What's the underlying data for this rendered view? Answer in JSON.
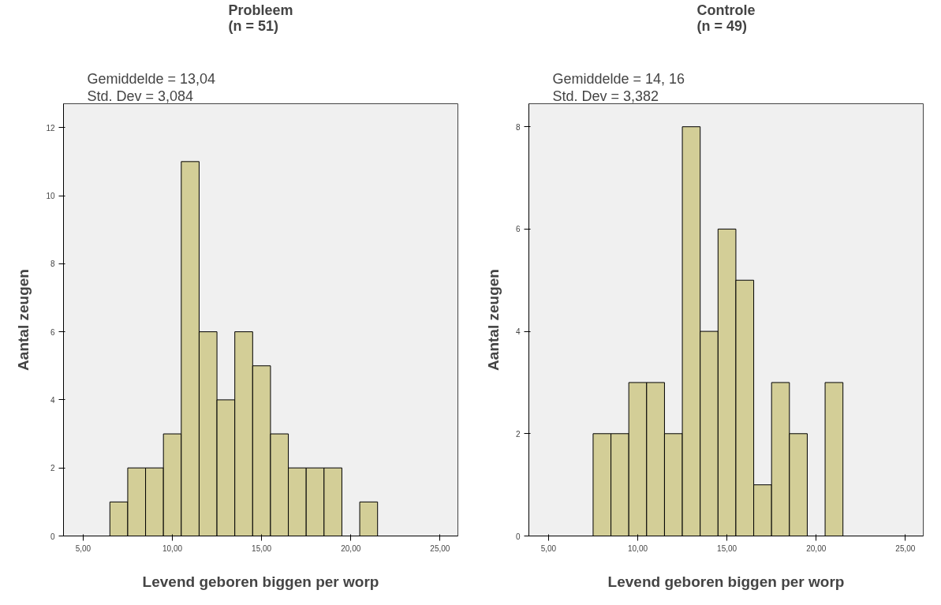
{
  "chart_data": [
    {
      "type": "histogram",
      "title": "Probleem\n(n = 51)",
      "annotations": [
        "Gemiddelde = 13,04",
        "Std. Dev = 3,084"
      ],
      "xlabel": "Levend geboren biggen per worp",
      "ylabel": "Aantal zeugen",
      "bins": [
        6.5,
        7.5,
        8.5,
        9.5,
        10.5,
        11.5,
        12.5,
        13.5,
        14.5,
        15.5,
        16.5,
        17.5,
        18.5,
        19.5,
        20.5,
        21.5
      ],
      "values": [
        1,
        2,
        2,
        3,
        11,
        6,
        4,
        6,
        5,
        3,
        2,
        2,
        2,
        0,
        1
      ],
      "color": "#d3ce97",
      "xlim": [
        3.9,
        26.0
      ],
      "xticks": [
        {
          "value": 5,
          "label": "5,00"
        },
        {
          "value": 10,
          "label": "10,00"
        },
        {
          "value": 15,
          "label": "15,00"
        },
        {
          "value": 20,
          "label": "20,00"
        },
        {
          "value": 25,
          "label": "25,00"
        }
      ],
      "ylim": [
        0,
        12.7
      ],
      "yticks": [
        0,
        2,
        4,
        6,
        8,
        10,
        12
      ],
      "grid": false
    },
    {
      "type": "histogram",
      "title": "Controle\n(n = 49)",
      "annotations": [
        "Gemiddelde = 14, 16",
        "Std. Dev = 3,382"
      ],
      "xlabel": "Levend geboren biggen per worp",
      "ylabel": "Aantal zeugen",
      "bins": [
        7.5,
        8.5,
        9.5,
        10.5,
        11.5,
        12.5,
        13.5,
        14.5,
        15.5,
        16.5,
        17.5,
        18.5,
        19.5,
        20.5,
        21.5
      ],
      "values": [
        2,
        2,
        3,
        3,
        2,
        8,
        4,
        6,
        5,
        1,
        3,
        2,
        0,
        3
      ],
      "color": "#d3ce97",
      "xlim": [
        3.9,
        26.0
      ],
      "xticks": [
        {
          "value": 5,
          "label": "5,00"
        },
        {
          "value": 10,
          "label": "10,00"
        },
        {
          "value": 15,
          "label": "15,00"
        },
        {
          "value": 20,
          "label": "20,00"
        },
        {
          "value": 25,
          "label": "25,00"
        }
      ],
      "ylim": [
        0,
        8.45
      ],
      "yticks": [
        0,
        2,
        4,
        6,
        8
      ],
      "grid": false
    }
  ]
}
